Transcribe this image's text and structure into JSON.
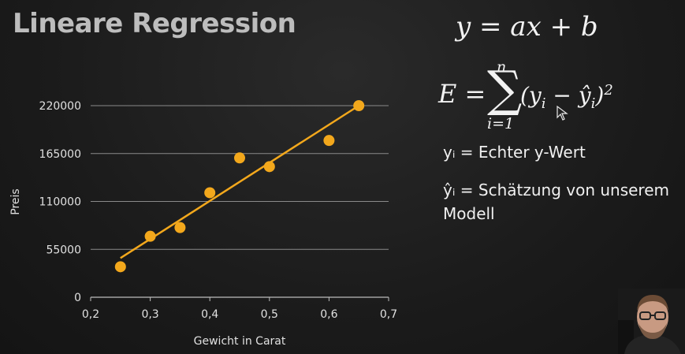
{
  "slide": {
    "title": "Lineare Regression",
    "formula_line": "y = ax + b",
    "error_formula": {
      "lhs": "E =",
      "sum_upper": "n",
      "sum_lower": "i=1",
      "term": "(y",
      "sub_i": "i",
      "minus": " − ",
      "yhat": "ŷ",
      "sub_i2": "i",
      "close": ")",
      "power": "2"
    },
    "definitions": [
      "yᵢ = Echter y-Wert",
      "ŷᵢ = Schätzung von unserem Modell"
    ]
  },
  "chart_data": {
    "type": "scatter",
    "xlabel": "Gewicht in Carat",
    "ylabel": "Preis",
    "xlim": [
      0.2,
      0.7
    ],
    "ylim": [
      0,
      220000
    ],
    "x_ticks": [
      "0,2",
      "0,3",
      "0,4",
      "0,5",
      "0,6",
      "0,7"
    ],
    "y_ticks": [
      "0",
      "55000",
      "110000",
      "165000",
      "220000"
    ],
    "grid": "horizontal",
    "point_color": "#f3a81c",
    "line_color": "#f3a81c",
    "points": [
      {
        "x": 0.25,
        "y": 35000
      },
      {
        "x": 0.3,
        "y": 70000
      },
      {
        "x": 0.35,
        "y": 80000
      },
      {
        "x": 0.4,
        "y": 120000
      },
      {
        "x": 0.45,
        "y": 160000
      },
      {
        "x": 0.5,
        "y": 150000
      },
      {
        "x": 0.6,
        "y": 180000
      },
      {
        "x": 0.65,
        "y": 220000
      }
    ],
    "fit_line": {
      "x": [
        0.25,
        0.65
      ],
      "y": [
        45000,
        220000
      ]
    }
  }
}
